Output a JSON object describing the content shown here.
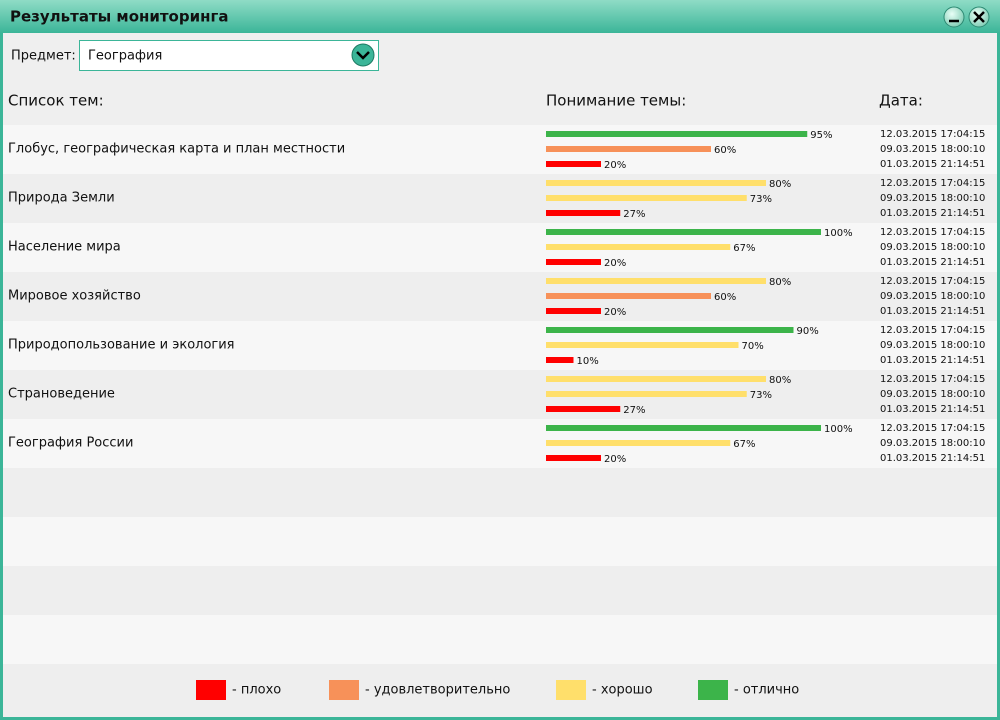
{
  "window": {
    "title": "Результаты мониторинга"
  },
  "subject": {
    "label": "Предмет:",
    "value": "География"
  },
  "columns": [
    "Список тем:",
    "Понимание темы:",
    "Дата:"
  ],
  "topics": [
    {
      "name": "Глобус, географическая карта и план местности",
      "results": [
        {
          "value": 95,
          "label": "95%",
          "level": 3,
          "date": "12.03.2015 17:04:15"
        },
        {
          "value": 60,
          "label": "60%",
          "level": 1,
          "date": "09.03.2015 18:00:10"
        },
        {
          "value": 20,
          "label": "20%",
          "level": 0,
          "date": "01.03.2015 21:14:51"
        }
      ]
    },
    {
      "name": "Природа Земли",
      "results": [
        {
          "value": 80,
          "label": "80%",
          "level": 2,
          "date": "12.03.2015 17:04:15"
        },
        {
          "value": 73,
          "label": "73%",
          "level": 2,
          "date": "09.03.2015 18:00:10"
        },
        {
          "value": 27,
          "label": "27%",
          "level": 0,
          "date": "01.03.2015 21:14:51"
        }
      ]
    },
    {
      "name": "Население мира",
      "results": [
        {
          "value": 100,
          "label": "100%",
          "level": 3,
          "date": "12.03.2015 17:04:15"
        },
        {
          "value": 67,
          "label": "67%",
          "level": 2,
          "date": "09.03.2015 18:00:10"
        },
        {
          "value": 20,
          "label": "20%",
          "level": 0,
          "date": "01.03.2015 21:14:51"
        }
      ]
    },
    {
      "name": "Мировое хозяйство",
      "results": [
        {
          "value": 80,
          "label": "80%",
          "level": 2,
          "date": "12.03.2015 17:04:15"
        },
        {
          "value": 60,
          "label": "60%",
          "level": 1,
          "date": "09.03.2015 18:00:10"
        },
        {
          "value": 20,
          "label": "20%",
          "level": 0,
          "date": "01.03.2015 21:14:51"
        }
      ]
    },
    {
      "name": "Природопользование и экология",
      "results": [
        {
          "value": 90,
          "label": "90%",
          "level": 3,
          "date": "12.03.2015 17:04:15"
        },
        {
          "value": 70,
          "label": "70%",
          "level": 2,
          "date": "09.03.2015 18:00:10"
        },
        {
          "value": 10,
          "label": "10%",
          "level": 0,
          "date": "01.03.2015 21:14:51"
        }
      ]
    },
    {
      "name": "Страноведение",
      "results": [
        {
          "value": 80,
          "label": "80%",
          "level": 2,
          "date": "12.03.2015 17:04:15"
        },
        {
          "value": 73,
          "label": "73%",
          "level": 2,
          "date": "09.03.2015 18:00:10"
        },
        {
          "value": 27,
          "label": "27%",
          "level": 0,
          "date": "01.03.2015 21:14:51"
        }
      ]
    },
    {
      "name": "География России",
      "results": [
        {
          "value": 100,
          "label": "100%",
          "level": 3,
          "date": "12.03.2015 17:04:15"
        },
        {
          "value": 67,
          "label": "67%",
          "level": 2,
          "date": "09.03.2015 18:00:10"
        },
        {
          "value": 20,
          "label": "20%",
          "level": 0,
          "date": "01.03.2015 21:14:51"
        }
      ]
    }
  ],
  "legend": [
    {
      "color": "#ff0000",
      "label": "- плохо"
    },
    {
      "color": "#f79159",
      "label": "- удовлетворительно"
    },
    {
      "color": "#ffdf6b",
      "label": "- хорошо"
    },
    {
      "color": "#3cb44a",
      "label": "- отлично"
    }
  ]
}
